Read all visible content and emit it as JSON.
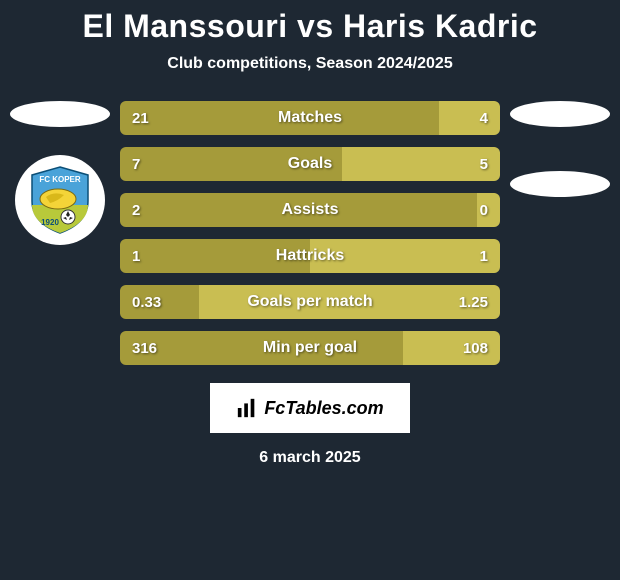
{
  "title": "El Manssouri vs Haris Kadric",
  "subtitle": "Club competitions, Season 2024/2025",
  "colors": {
    "left_player": "#a59b3a",
    "right_player": "#c9be52",
    "background": "#1e2833",
    "text": "#ffffff",
    "brand_bg": "#ffffff",
    "brand_text": "#000000"
  },
  "badge": {
    "outer_bg": "#ffffff",
    "shield_top": "#4aa3d9",
    "shield_bottom": "#b8c93a",
    "club_text": "FC KOPER",
    "year_text": "1920"
  },
  "stats": [
    {
      "name": "Matches",
      "left_val": "21",
      "right_val": "4",
      "left_pct": 84.0,
      "right_pct": 16.0
    },
    {
      "name": "Goals",
      "left_val": "7",
      "right_val": "5",
      "left_pct": 58.3,
      "right_pct": 41.7
    },
    {
      "name": "Assists",
      "left_val": "2",
      "right_val": "0",
      "left_pct": 94.0,
      "right_pct": 6.0
    },
    {
      "name": "Hattricks",
      "left_val": "1",
      "right_val": "1",
      "left_pct": 50.0,
      "right_pct": 50.0
    },
    {
      "name": "Goals per match",
      "left_val": "0.33",
      "right_val": "1.25",
      "left_pct": 20.9,
      "right_pct": 79.1
    },
    {
      "name": "Min per goal",
      "left_val": "316",
      "right_val": "108",
      "left_pct": 74.5,
      "right_pct": 25.5
    }
  ],
  "brand": "FcTables.com",
  "date": "6 march 2025"
}
